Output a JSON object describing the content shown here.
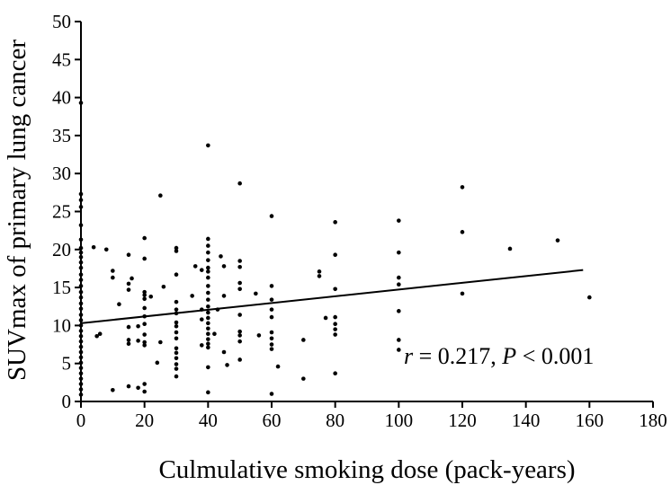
{
  "chart_data": {
    "type": "scatter",
    "title": "",
    "xlabel": "Culmulative smoking dose (pack-years)",
    "ylabel": "SUVmax of  primary lung cancer",
    "xlim": [
      0,
      180
    ],
    "ylim": [
      0,
      50
    ],
    "xticks": [
      0,
      20,
      40,
      60,
      80,
      100,
      120,
      140,
      160,
      180
    ],
    "yticks": [
      0,
      5,
      10,
      15,
      20,
      25,
      30,
      35,
      40,
      45,
      50
    ],
    "grid": false,
    "legend": "none",
    "points": [
      [
        0,
        39.3
      ],
      [
        0,
        27.3
      ],
      [
        0,
        26.5
      ],
      [
        0,
        25.6
      ],
      [
        0,
        23.2
      ],
      [
        0,
        21.3
      ],
      [
        0,
        20.2
      ],
      [
        0,
        19.6
      ],
      [
        0,
        19.0
      ],
      [
        0,
        18.3
      ],
      [
        0,
        17.6
      ],
      [
        0,
        16.7
      ],
      [
        0,
        16.0
      ],
      [
        0,
        15.2
      ],
      [
        0,
        14.4
      ],
      [
        0,
        13.7
      ],
      [
        0,
        12.9
      ],
      [
        0,
        12.2
      ],
      [
        0,
        11.4
      ],
      [
        0,
        10.7
      ],
      [
        0,
        10.0
      ],
      [
        0,
        9.3
      ],
      [
        0,
        8.6
      ],
      [
        0,
        7.9
      ],
      [
        0,
        7.2
      ],
      [
        0,
        6.5
      ],
      [
        0,
        5.8
      ],
      [
        0,
        5.1
      ],
      [
        0,
        4.4
      ],
      [
        0,
        3.7
      ],
      [
        0,
        3.0
      ],
      [
        0,
        2.3
      ],
      [
        0,
        1.6
      ],
      [
        0,
        0.9
      ],
      [
        4,
        20.3
      ],
      [
        5,
        8.6
      ],
      [
        6,
        8.9
      ],
      [
        8,
        20.0
      ],
      [
        10,
        17.2
      ],
      [
        10,
        16.3
      ],
      [
        10,
        1.5
      ],
      [
        12,
        12.8
      ],
      [
        15,
        19.3
      ],
      [
        15,
        15.5
      ],
      [
        15,
        14.7
      ],
      [
        15,
        9.8
      ],
      [
        15,
        8.1
      ],
      [
        15,
        7.6
      ],
      [
        15,
        2.0
      ],
      [
        16,
        16.2
      ],
      [
        18,
        8.0
      ],
      [
        18,
        9.9
      ],
      [
        18,
        1.8
      ],
      [
        20,
        21.5
      ],
      [
        20,
        18.8
      ],
      [
        20,
        14.4
      ],
      [
        20,
        14.0
      ],
      [
        20,
        13.5
      ],
      [
        20,
        12.3
      ],
      [
        20,
        11.2
      ],
      [
        20,
        10.2
      ],
      [
        20,
        8.8
      ],
      [
        20,
        7.8
      ],
      [
        20,
        7.4
      ],
      [
        20,
        2.3
      ],
      [
        20,
        1.3
      ],
      [
        22,
        13.8
      ],
      [
        24,
        5.1
      ],
      [
        25,
        27.1
      ],
      [
        25,
        7.8
      ],
      [
        26,
        15.1
      ],
      [
        30,
        20.2
      ],
      [
        30,
        19.8
      ],
      [
        30,
        16.7
      ],
      [
        30,
        13.1
      ],
      [
        30,
        12.1
      ],
      [
        30,
        11.6
      ],
      [
        30,
        10.4
      ],
      [
        30,
        9.9
      ],
      [
        30,
        9.1
      ],
      [
        30,
        8.3
      ],
      [
        30,
        7.0
      ],
      [
        30,
        6.4
      ],
      [
        30,
        5.7
      ],
      [
        30,
        4.9
      ],
      [
        30,
        4.3
      ],
      [
        30,
        3.3
      ],
      [
        35,
        13.9
      ],
      [
        36,
        17.8
      ],
      [
        38,
        17.3
      ],
      [
        38,
        12.1
      ],
      [
        38,
        10.8
      ],
      [
        38,
        7.4
      ],
      [
        40,
        33.7
      ],
      [
        40,
        21.4
      ],
      [
        40,
        20.5
      ],
      [
        40,
        19.6
      ],
      [
        40,
        18.6
      ],
      [
        40,
        17.6
      ],
      [
        40,
        17.1
      ],
      [
        40,
        16.3
      ],
      [
        40,
        15.2
      ],
      [
        40,
        14.3
      ],
      [
        40,
        13.4
      ],
      [
        40,
        12.5
      ],
      [
        40,
        11.7
      ],
      [
        40,
        11.0
      ],
      [
        40,
        10.3
      ],
      [
        40,
        9.6
      ],
      [
        40,
        8.9
      ],
      [
        40,
        8.2
      ],
      [
        40,
        7.6
      ],
      [
        40,
        7.1
      ],
      [
        40,
        4.5
      ],
      [
        40,
        1.2
      ],
      [
        42,
        8.9
      ],
      [
        43,
        12.1
      ],
      [
        44,
        19.1
      ],
      [
        45,
        17.8
      ],
      [
        45,
        13.9
      ],
      [
        45,
        6.5
      ],
      [
        46,
        4.8
      ],
      [
        50,
        28.7
      ],
      [
        50,
        18.5
      ],
      [
        50,
        17.7
      ],
      [
        50,
        15.6
      ],
      [
        50,
        14.8
      ],
      [
        50,
        11.4
      ],
      [
        50,
        9.2
      ],
      [
        50,
        8.7
      ],
      [
        50,
        7.9
      ],
      [
        50,
        5.5
      ],
      [
        55,
        14.2
      ],
      [
        56,
        8.7
      ],
      [
        60,
        24.4
      ],
      [
        60,
        15.2
      ],
      [
        60,
        13.4
      ],
      [
        60,
        12.1
      ],
      [
        60,
        11.1
      ],
      [
        60,
        9.1
      ],
      [
        60,
        8.3
      ],
      [
        60,
        7.5
      ],
      [
        60,
        6.9
      ],
      [
        60,
        1.0
      ],
      [
        62,
        4.6
      ],
      [
        70,
        8.1
      ],
      [
        70,
        3.0
      ],
      [
        75,
        17.1
      ],
      [
        75,
        16.5
      ],
      [
        77,
        11.0
      ],
      [
        80,
        23.6
      ],
      [
        80,
        19.3
      ],
      [
        80,
        14.8
      ],
      [
        80,
        11.1
      ],
      [
        80,
        10.2
      ],
      [
        80,
        9.5
      ],
      [
        80,
        8.8
      ],
      [
        80,
        3.7
      ],
      [
        100,
        23.8
      ],
      [
        100,
        19.6
      ],
      [
        100,
        16.3
      ],
      [
        100,
        15.4
      ],
      [
        100,
        11.9
      ],
      [
        100,
        8.1
      ],
      [
        100,
        6.8
      ],
      [
        120,
        28.2
      ],
      [
        120,
        22.3
      ],
      [
        120,
        14.2
      ],
      [
        135,
        20.1
      ],
      [
        150,
        21.2
      ],
      [
        160,
        13.7
      ]
    ],
    "regression_line": {
      "x": [
        0,
        158
      ],
      "y": [
        10.3,
        17.3
      ]
    },
    "annotation": {
      "r_sym": "r",
      "r_text": " = 0.217, ",
      "p_sym": "P",
      "p_text": " < 0.001"
    }
  }
}
